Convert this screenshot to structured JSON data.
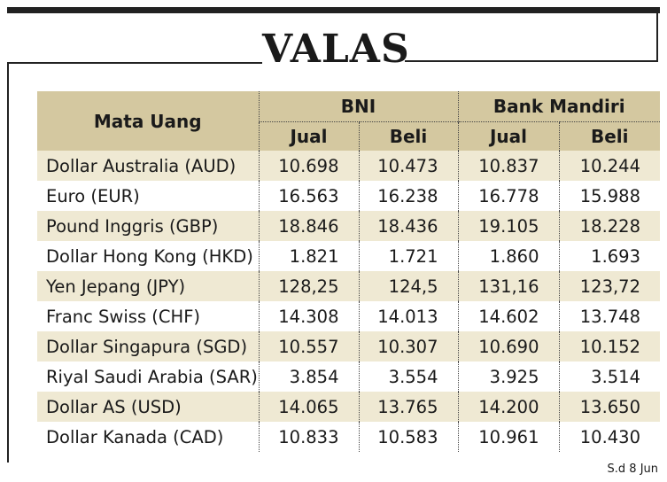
{
  "title": "VALAS",
  "table": {
    "col_currency": "Mata Uang",
    "bank1": "BNI",
    "bank2": "Bank Mandiri",
    "sell": "Jual",
    "buy": "Beli",
    "rows": [
      {
        "currency": "Dollar Australia (AUD)",
        "bni_jual": "10.698",
        "bni_beli": "10.473",
        "mandiri_jual": "10.837",
        "mandiri_beli": "10.244"
      },
      {
        "currency": "Euro (EUR)",
        "bni_jual": "16.563",
        "bni_beli": "16.238",
        "mandiri_jual": "16.778",
        "mandiri_beli": "15.988"
      },
      {
        "currency": "Pound Inggris (GBP)",
        "bni_jual": "18.846",
        "bni_beli": "18.436",
        "mandiri_jual": "19.105",
        "mandiri_beli": "18.228"
      },
      {
        "currency": "Dollar Hong Kong (HKD)",
        "bni_jual": "1.821",
        "bni_beli": "1.721",
        "mandiri_jual": "1.860",
        "mandiri_beli": "1.693"
      },
      {
        "currency": "Yen Jepang (JPY)",
        "bni_jual": "128,25",
        "bni_beli": "124,5",
        "mandiri_jual": "131,16",
        "mandiri_beli": "123,72"
      },
      {
        "currency": "Franc Swiss (CHF)",
        "bni_jual": "14.308",
        "bni_beli": "14.013",
        "mandiri_jual": "14.602",
        "mandiri_beli": "13.748"
      },
      {
        "currency": "Dollar Singapura (SGD)",
        "bni_jual": "10.557",
        "bni_beli": "10.307",
        "mandiri_jual": "10.690",
        "mandiri_beli": "10.152"
      },
      {
        "currency": "Riyal Saudi Arabia (SAR)",
        "bni_jual": "3.854",
        "bni_beli": "3.554",
        "mandiri_jual": "3.925",
        "mandiri_beli": "3.514"
      },
      {
        "currency": "Dollar AS (USD)",
        "bni_jual": "14.065",
        "bni_beli": "13.765",
        "mandiri_jual": "14.200",
        "mandiri_beli": "13.650"
      },
      {
        "currency": "Dollar Kanada (CAD)",
        "bni_jual": "10.833",
        "bni_beli": "10.583",
        "mandiri_jual": "10.961",
        "mandiri_beli": "10.430"
      }
    ]
  },
  "note": "S.d 8 Jun",
  "colors": {
    "header_bg": "#d4c8a0",
    "alt_row_bg": "#efe9d3",
    "frame": "#222222"
  }
}
